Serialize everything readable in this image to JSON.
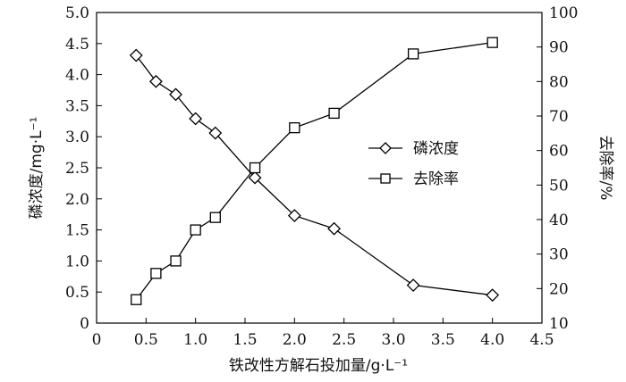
{
  "chart_data": {
    "type": "line",
    "title": "",
    "xlabel": "铁改性方解石投加量/g·L⁻¹",
    "x_range": [
      0,
      4.5
    ],
    "x_ticks": [
      "0",
      "0.5",
      "1.0",
      "1.5",
      "2.0",
      "2.5",
      "3.0",
      "3.5",
      "4.0",
      "4.5"
    ],
    "y_left": {
      "label": "磷浓度/mg·L⁻¹",
      "range": [
        0,
        5.0
      ],
      "ticks": [
        "0",
        "0.5",
        "1.0",
        "1.5",
        "2.0",
        "2.5",
        "3.0",
        "3.5",
        "4.0",
        "4.5",
        "5.0"
      ]
    },
    "y_right": {
      "label": "去除率/%",
      "range": [
        10,
        100
      ],
      "ticks": [
        "10",
        "20",
        "30",
        "40",
        "50",
        "60",
        "70",
        "80",
        "90",
        "100"
      ]
    },
    "grid": false,
    "legend_position": "center-right",
    "series": [
      {
        "name": "磷浓度",
        "axis": "left",
        "marker": "diamond",
        "color": "#000000",
        "x": [
          0.4,
          0.6,
          0.8,
          1.0,
          1.2,
          1.6,
          2.0,
          2.4,
          3.2,
          4.0
        ],
        "y": [
          4.31,
          3.89,
          3.68,
          3.29,
          3.06,
          2.34,
          1.73,
          1.52,
          0.61,
          0.45
        ]
      },
      {
        "name": "去除率",
        "axis": "right",
        "marker": "square",
        "color": "#000000",
        "x": [
          0.4,
          0.6,
          0.8,
          1.0,
          1.2,
          1.6,
          2.0,
          2.4,
          3.2,
          4.0
        ],
        "y": [
          16.8,
          24.4,
          28.0,
          37.0,
          40.6,
          55.0,
          66.6,
          70.8,
          88.0,
          91.3
        ]
      }
    ]
  }
}
